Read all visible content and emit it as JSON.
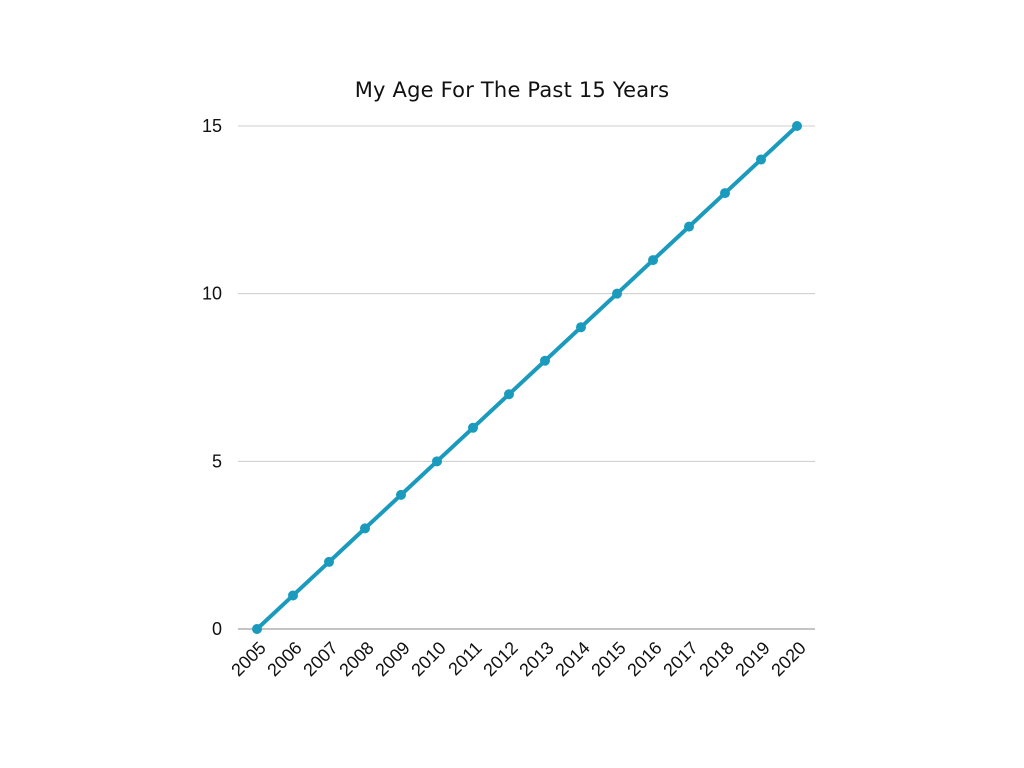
{
  "chart_data": {
    "type": "line",
    "title": "My Age For The Past 15 Years",
    "xlabel": "",
    "ylabel": "",
    "x": [
      "2005",
      "2006",
      "2007",
      "2008",
      "2009",
      "2010",
      "2011",
      "2012",
      "2013",
      "2014",
      "2015",
      "2016",
      "2017",
      "2018",
      "2019",
      "2020"
    ],
    "series": [
      {
        "values": [
          0,
          1,
          2,
          3,
          4,
          5,
          6,
          7,
          8,
          9,
          10,
          11,
          12,
          13,
          14,
          15
        ]
      }
    ],
    "ylim": [
      0,
      15
    ],
    "yticks": [
      0,
      5,
      10,
      15
    ],
    "grid": true,
    "line_color": "#1a9bbd",
    "grid_color": "#cccccc",
    "axis_color": "#888888"
  }
}
